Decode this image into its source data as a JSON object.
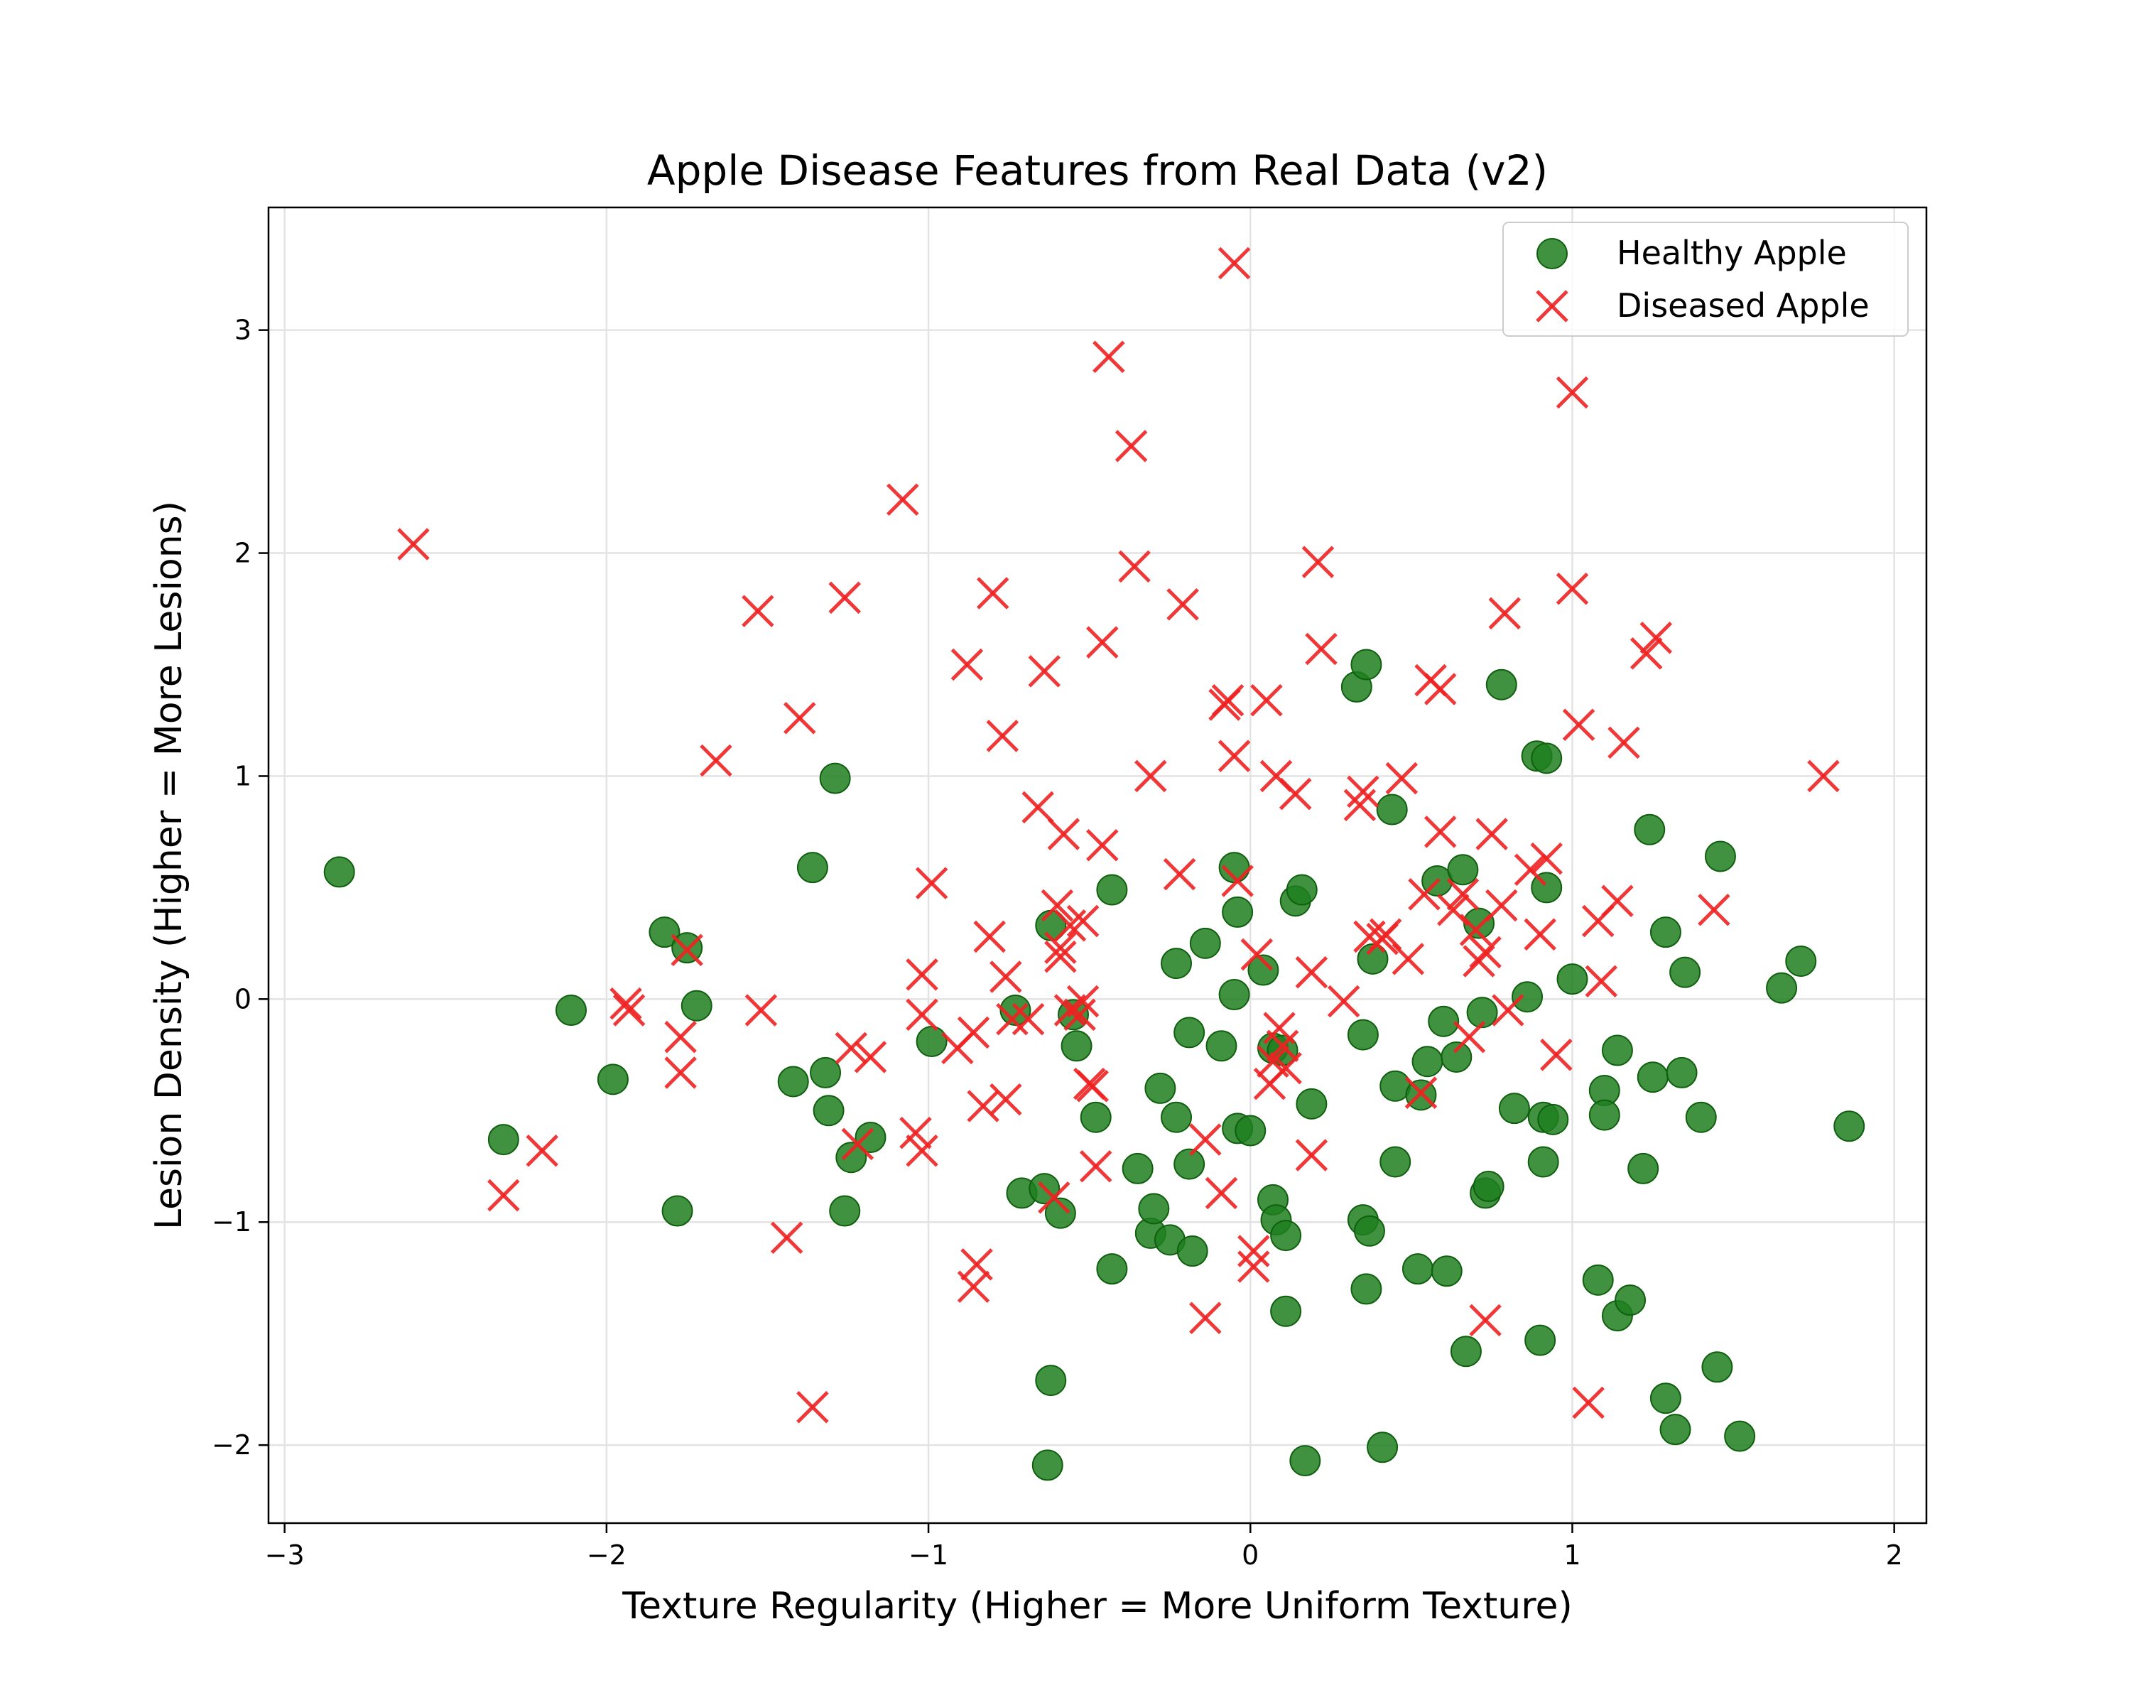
{
  "chart_data": {
    "type": "scatter",
    "title": "Apple Disease Features from Real Data (v2)",
    "xlabel": "Texture Regularity (Higher = More Uniform Texture)",
    "ylabel": "Lesion Density (Higher = More Lesions)",
    "xlim": [
      -3.05,
      2.1
    ],
    "ylim": [
      -2.35,
      3.55
    ],
    "x_ticks": [
      -3,
      -2,
      -1,
      0,
      1,
      2
    ],
    "y_ticks": [
      -2,
      -1,
      0,
      1,
      2,
      3
    ],
    "x_tick_labels": [
      "−3",
      "−2",
      "−1",
      "0",
      "1",
      "2"
    ],
    "y_tick_labels": [
      "−2",
      "−1",
      "0",
      "1",
      "2",
      "3"
    ],
    "grid": true,
    "legend_position": "top-right",
    "series": [
      {
        "name": "Healthy Apple",
        "marker": "circle",
        "color": "#1f7f1f",
        "points": [
          [
            -2.83,
            0.57
          ],
          [
            -2.32,
            -0.63
          ],
          [
            -2.11,
            -0.05
          ],
          [
            -1.98,
            -0.36
          ],
          [
            -1.82,
            0.3
          ],
          [
            -1.78,
            -0.95
          ],
          [
            -1.75,
            0.23
          ],
          [
            -1.72,
            -0.03
          ],
          [
            -1.42,
            -0.37
          ],
          [
            -1.36,
            0.59
          ],
          [
            -1.32,
            -0.33
          ],
          [
            -1.31,
            -0.5
          ],
          [
            -1.29,
            0.99
          ],
          [
            -1.26,
            -0.95
          ],
          [
            -1.24,
            -0.71
          ],
          [
            -1.18,
            -0.62
          ],
          [
            -0.99,
            -0.19
          ],
          [
            -0.73,
            -0.05
          ],
          [
            -0.71,
            -0.87
          ],
          [
            -0.64,
            -0.85
          ],
          [
            -0.62,
            0.33
          ],
          [
            -0.62,
            -1.71
          ],
          [
            -0.63,
            -2.09
          ],
          [
            -0.59,
            -0.96
          ],
          [
            -0.55,
            -0.07
          ],
          [
            -0.54,
            -0.21
          ],
          [
            -0.48,
            -0.53
          ],
          [
            -0.43,
            0.49
          ],
          [
            -0.43,
            -1.21
          ],
          [
            -0.35,
            -0.76
          ],
          [
            -0.31,
            -1.05
          ],
          [
            -0.3,
            -0.94
          ],
          [
            -0.28,
            -0.4
          ],
          [
            -0.25,
            -1.08
          ],
          [
            -0.23,
            0.16
          ],
          [
            -0.23,
            -0.53
          ],
          [
            -0.19,
            -0.15
          ],
          [
            -0.19,
            -0.74
          ],
          [
            -0.18,
            -1.13
          ],
          [
            -0.14,
            0.25
          ],
          [
            -0.09,
            -0.21
          ],
          [
            -0.05,
            0.59
          ],
          [
            -0.05,
            0.02
          ],
          [
            -0.04,
            -0.58
          ],
          [
            -0.04,
            0.39
          ],
          [
            0.0,
            -0.59
          ],
          [
            0.04,
            0.13
          ],
          [
            0.07,
            -0.9
          ],
          [
            0.07,
            -0.22
          ],
          [
            0.08,
            -0.99
          ],
          [
            0.1,
            -0.23
          ],
          [
            0.11,
            -1.06
          ],
          [
            0.11,
            -1.4
          ],
          [
            0.14,
            0.44
          ],
          [
            0.16,
            0.49
          ],
          [
            0.17,
            -2.07
          ],
          [
            0.19,
            -0.47
          ],
          [
            0.33,
            1.4
          ],
          [
            0.35,
            -0.16
          ],
          [
            0.35,
            -0.99
          ],
          [
            0.36,
            -1.3
          ],
          [
            0.36,
            1.5
          ],
          [
            0.37,
            -1.04
          ],
          [
            0.38,
            0.18
          ],
          [
            0.41,
            -2.01
          ],
          [
            0.44,
            0.85
          ],
          [
            0.45,
            -0.73
          ],
          [
            0.45,
            -0.39
          ],
          [
            0.52,
            -1.21
          ],
          [
            0.53,
            -0.43
          ],
          [
            0.55,
            -0.28
          ],
          [
            0.58,
            0.53
          ],
          [
            0.6,
            -0.1
          ],
          [
            0.61,
            -1.22
          ],
          [
            0.64,
            -0.26
          ],
          [
            0.66,
            0.58
          ],
          [
            0.67,
            -1.58
          ],
          [
            0.71,
            0.34
          ],
          [
            0.72,
            -0.06
          ],
          [
            0.73,
            -0.87
          ],
          [
            0.74,
            -0.84
          ],
          [
            0.78,
            1.41
          ],
          [
            0.82,
            -0.49
          ],
          [
            0.86,
            0.01
          ],
          [
            0.89,
            1.09
          ],
          [
            0.9,
            -1.53
          ],
          [
            0.91,
            -0.73
          ],
          [
            0.91,
            -0.53
          ],
          [
            0.92,
            1.08
          ],
          [
            0.92,
            0.5
          ],
          [
            0.94,
            -0.54
          ],
          [
            1.0,
            0.09
          ],
          [
            1.08,
            -1.26
          ],
          [
            1.1,
            -0.41
          ],
          [
            1.1,
            -0.52
          ],
          [
            1.14,
            -0.23
          ],
          [
            1.14,
            -1.42
          ],
          [
            1.18,
            -1.35
          ],
          [
            1.22,
            -0.76
          ],
          [
            1.24,
            0.76
          ],
          [
            1.25,
            -0.35
          ],
          [
            1.29,
            0.3
          ],
          [
            1.29,
            -1.79
          ],
          [
            1.32,
            -1.93
          ],
          [
            1.34,
            -0.33
          ],
          [
            1.35,
            0.12
          ],
          [
            1.4,
            -0.53
          ],
          [
            1.45,
            -1.65
          ],
          [
            1.46,
            0.64
          ],
          [
            1.52,
            -1.96
          ],
          [
            1.65,
            0.05
          ],
          [
            1.71,
            0.17
          ],
          [
            1.86,
            -0.57
          ]
        ]
      },
      {
        "name": "Diseased Apple",
        "marker": "x",
        "color": "#ee2222",
        "points": [
          [
            -2.6,
            2.04
          ],
          [
            -2.32,
            -0.88
          ],
          [
            -2.2,
            -0.68
          ],
          [
            -1.94,
            -0.02
          ],
          [
            -1.93,
            -0.05
          ],
          [
            -1.77,
            -0.17
          ],
          [
            -1.77,
            -0.33
          ],
          [
            -1.75,
            0.22
          ],
          [
            -1.66,
            1.07
          ],
          [
            -1.52,
            -0.05
          ],
          [
            -1.53,
            1.74
          ],
          [
            -1.44,
            -1.07
          ],
          [
            -1.4,
            1.26
          ],
          [
            -1.36,
            -1.83
          ],
          [
            -1.26,
            1.8
          ],
          [
            -1.24,
            -0.22
          ],
          [
            -1.22,
            -0.65
          ],
          [
            -1.18,
            -0.26
          ],
          [
            -1.08,
            2.24
          ],
          [
            -1.04,
            -0.6
          ],
          [
            -1.02,
            -0.68
          ],
          [
            -1.02,
            -0.07
          ],
          [
            -1.02,
            0.11
          ],
          [
            -0.99,
            0.52
          ],
          [
            -0.91,
            -0.22
          ],
          [
            -0.88,
            1.5
          ],
          [
            -0.86,
            -0.15
          ],
          [
            -0.85,
            -1.19
          ],
          [
            -0.86,
            -1.29
          ],
          [
            -0.83,
            -0.48
          ],
          [
            -0.81,
            0.28
          ],
          [
            -0.8,
            1.82
          ],
          [
            -0.77,
            1.18
          ],
          [
            -0.76,
            0.1
          ],
          [
            -0.76,
            -0.45
          ],
          [
            -0.74,
            -0.09
          ],
          [
            -0.69,
            -0.09
          ],
          [
            -0.66,
            0.86
          ],
          [
            -0.64,
            1.47
          ],
          [
            -0.61,
            -0.89
          ],
          [
            -0.6,
            0.42
          ],
          [
            -0.59,
            0.23
          ],
          [
            -0.59,
            0.19
          ],
          [
            -0.58,
            0.74
          ],
          [
            -0.56,
            0.33
          ],
          [
            -0.56,
            -0.05
          ],
          [
            -0.53,
            -0.07
          ],
          [
            -0.52,
            -0.01
          ],
          [
            -0.52,
            0.35
          ],
          [
            -0.5,
            -0.38
          ],
          [
            -0.49,
            -0.39
          ],
          [
            -0.48,
            -0.75
          ],
          [
            -0.46,
            0.69
          ],
          [
            -0.46,
            1.6
          ],
          [
            -0.44,
            2.88
          ],
          [
            -0.37,
            2.48
          ],
          [
            -0.36,
            1.94
          ],
          [
            -0.31,
            1.0
          ],
          [
            -0.21,
            1.77
          ],
          [
            -0.22,
            0.56
          ],
          [
            -0.14,
            -1.43
          ],
          [
            -0.14,
            -0.63
          ],
          [
            -0.09,
            -0.87
          ],
          [
            -0.08,
            1.32
          ],
          [
            -0.07,
            1.34
          ],
          [
            -0.05,
            3.3
          ],
          [
            -0.05,
            1.09
          ],
          [
            -0.04,
            0.53
          ],
          [
            0.01,
            -1.13
          ],
          [
            0.01,
            -1.2
          ],
          [
            0.02,
            0.2
          ],
          [
            0.05,
            1.34
          ],
          [
            0.06,
            -0.38
          ],
          [
            0.07,
            -0.28
          ],
          [
            0.08,
            1.0
          ],
          [
            0.09,
            -0.13
          ],
          [
            0.1,
            -0.21
          ],
          [
            0.11,
            -0.31
          ],
          [
            0.14,
            0.92
          ],
          [
            0.19,
            0.12
          ],
          [
            0.19,
            -0.7
          ],
          [
            0.21,
            1.96
          ],
          [
            0.22,
            1.57
          ],
          [
            0.29,
            -0.01
          ],
          [
            0.34,
            0.87
          ],
          [
            0.35,
            0.93
          ],
          [
            0.37,
            0.28
          ],
          [
            0.41,
            0.27
          ],
          [
            0.42,
            0.29
          ],
          [
            0.47,
            0.99
          ],
          [
            0.49,
            0.18
          ],
          [
            0.53,
            -0.42
          ],
          [
            0.54,
            0.47
          ],
          [
            0.56,
            1.43
          ],
          [
            0.59,
            1.39
          ],
          [
            0.59,
            0.75
          ],
          [
            0.63,
            0.4
          ],
          [
            0.66,
            0.47
          ],
          [
            0.68,
            -0.17
          ],
          [
            0.7,
            0.31
          ],
          [
            0.71,
            0.17
          ],
          [
            0.73,
            -1.44
          ],
          [
            0.73,
            0.21
          ],
          [
            0.75,
            0.74
          ],
          [
            0.78,
            0.42
          ],
          [
            0.79,
            1.73
          ],
          [
            0.8,
            -0.05
          ],
          [
            0.87,
            0.58
          ],
          [
            0.9,
            0.29
          ],
          [
            0.92,
            0.63
          ],
          [
            0.95,
            -0.25
          ],
          [
            1.0,
            2.72
          ],
          [
            1.0,
            1.84
          ],
          [
            1.02,
            1.23
          ],
          [
            1.05,
            -1.81
          ],
          [
            1.08,
            0.35
          ],
          [
            1.09,
            0.08
          ],
          [
            1.14,
            0.44
          ],
          [
            1.16,
            1.15
          ],
          [
            1.23,
            1.55
          ],
          [
            1.26,
            1.62
          ],
          [
            1.44,
            0.4
          ],
          [
            1.78,
            1.0
          ]
        ]
      }
    ]
  }
}
